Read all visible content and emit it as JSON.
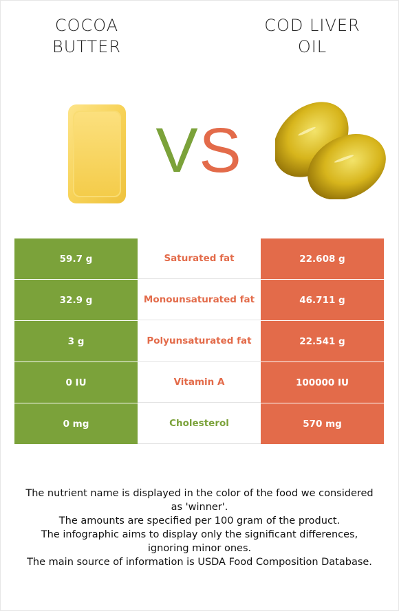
{
  "foods": {
    "left": {
      "name_line1": "COCOA",
      "name_line2": "BUTTER",
      "color": "#7ba23a"
    },
    "right": {
      "name_line1": "COD LIVER",
      "name_line2": "OIL",
      "color": "#e36b4a"
    }
  },
  "vs": {
    "v": "V",
    "s": "S",
    "v_color": "#7ba23a",
    "s_color": "#e36b4a"
  },
  "rows": [
    {
      "left": "59.7 g",
      "nutrient": "Saturated fat",
      "right": "22.608 g",
      "winner": "right",
      "winner_color": "#e36b4a"
    },
    {
      "left": "32.9 g",
      "nutrient": "Monounsaturated fat",
      "right": "46.711 g",
      "winner": "right",
      "winner_color": "#e36b4a"
    },
    {
      "left": "3 g",
      "nutrient": "Polyunsaturated fat",
      "right": "22.541 g",
      "winner": "right",
      "winner_color": "#e36b4a"
    },
    {
      "left": "0 IU",
      "nutrient": "Vitamin A",
      "right": "100000 IU",
      "winner": "right",
      "winner_color": "#e36b4a"
    },
    {
      "left": "0 mg",
      "nutrient": "Cholesterol",
      "right": "570 mg",
      "winner": "left",
      "winner_color": "#7ba23a"
    }
  ],
  "footnote": [
    "The nutrient name is displayed in the color of the food we considered as 'winner'.",
    "The amounts are specified per 100 gram of the product.",
    "The infographic aims to display only the significant differences, ignoring minor ones.",
    "The main source of information is USDA Food Composition Database."
  ]
}
